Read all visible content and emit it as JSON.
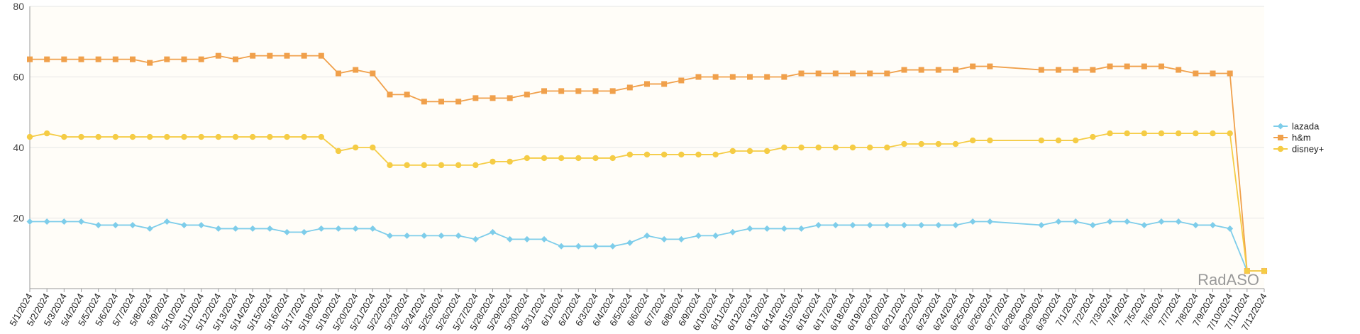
{
  "chart_data": {
    "type": "line",
    "title": "",
    "xlabel": "",
    "ylabel": "",
    "ylim": [
      0,
      80
    ],
    "yticks": [
      20,
      40,
      60,
      80
    ],
    "grid": true,
    "legend_position": "right",
    "x": [
      "5/1/2024",
      "5/2/2024",
      "5/3/2024",
      "5/4/2024",
      "5/5/2024",
      "5/6/2024",
      "5/7/2024",
      "5/8/2024",
      "5/9/2024",
      "5/10/2024",
      "5/11/2024",
      "5/12/2024",
      "5/13/2024",
      "5/14/2024",
      "5/15/2024",
      "5/16/2024",
      "5/17/2024",
      "5/18/2024",
      "5/19/2024",
      "5/20/2024",
      "5/21/2024",
      "5/22/2024",
      "5/23/2024",
      "5/24/2024",
      "5/25/2024",
      "5/26/2024",
      "5/27/2024",
      "5/28/2024",
      "5/29/2024",
      "5/30/2024",
      "5/31/2024",
      "6/1/2024",
      "6/2/2024",
      "6/3/2024",
      "6/4/2024",
      "6/5/2024",
      "6/6/2024",
      "6/7/2024",
      "6/8/2024",
      "6/9/2024",
      "6/10/2024",
      "6/11/2024",
      "6/12/2024",
      "6/13/2024",
      "6/14/2024",
      "6/15/2024",
      "6/16/2024",
      "6/17/2024",
      "6/18/2024",
      "6/19/2024",
      "6/20/2024",
      "6/21/2024",
      "6/22/2024",
      "6/23/2024",
      "6/24/2024",
      "6/25/2024",
      "6/26/2024",
      "6/27/2024",
      "6/28/2024",
      "6/29/2024",
      "6/30/2024",
      "7/1/2024",
      "7/2/2024",
      "7/3/2024",
      "7/4/2024",
      "7/5/2024",
      "7/6/2024",
      "7/7/2024",
      "7/8/2024",
      "7/9/2024",
      "7/10/2024",
      "7/11/2024",
      "7/12/2024"
    ],
    "series": [
      {
        "name": "lazada",
        "color": "#7ecdea",
        "marker": "diamond",
        "values": [
          19,
          19,
          19,
          19,
          18,
          18,
          18,
          17,
          19,
          18,
          18,
          17,
          17,
          17,
          17,
          16,
          16,
          17,
          17,
          17,
          17,
          15,
          15,
          15,
          15,
          15,
          14,
          16,
          14,
          14,
          14,
          12,
          12,
          12,
          12,
          13,
          15,
          14,
          14,
          15,
          15,
          16,
          17,
          17,
          17,
          17,
          18,
          18,
          18,
          18,
          18,
          18,
          18,
          18,
          18,
          19,
          19,
          null,
          null,
          18,
          19,
          19,
          18,
          19,
          19,
          18,
          19,
          19,
          18,
          18,
          17,
          5,
          5
        ]
      },
      {
        "name": "h&m",
        "color": "#f0a04b",
        "marker": "square",
        "values": [
          65,
          65,
          65,
          65,
          65,
          65,
          65,
          64,
          65,
          65,
          65,
          66,
          65,
          66,
          66,
          66,
          66,
          66,
          61,
          62,
          61,
          55,
          55,
          53,
          53,
          53,
          54,
          54,
          54,
          55,
          56,
          56,
          56,
          56,
          56,
          57,
          58,
          58,
          59,
          60,
          60,
          60,
          60,
          60,
          60,
          61,
          61,
          61,
          61,
          61,
          61,
          62,
          62,
          62,
          62,
          63,
          63,
          null,
          null,
          62,
          62,
          62,
          62,
          63,
          63,
          63,
          63,
          62,
          61,
          61,
          61,
          5,
          5
        ]
      },
      {
        "name": "disney+",
        "color": "#f5cc45",
        "marker": "circle",
        "values": [
          43,
          44,
          43,
          43,
          43,
          43,
          43,
          43,
          43,
          43,
          43,
          43,
          43,
          43,
          43,
          43,
          43,
          43,
          39,
          40,
          40,
          35,
          35,
          35,
          35,
          35,
          35,
          36,
          36,
          37,
          37,
          37,
          37,
          37,
          37,
          38,
          38,
          38,
          38,
          38,
          38,
          39,
          39,
          39,
          40,
          40,
          40,
          40,
          40,
          40,
          40,
          41,
          41,
          41,
          41,
          42,
          42,
          null,
          null,
          42,
          42,
          42,
          43,
          44,
          44,
          44,
          44,
          44,
          44,
          44,
          44,
          5,
          5
        ]
      }
    ],
    "watermark": "RadASO"
  }
}
